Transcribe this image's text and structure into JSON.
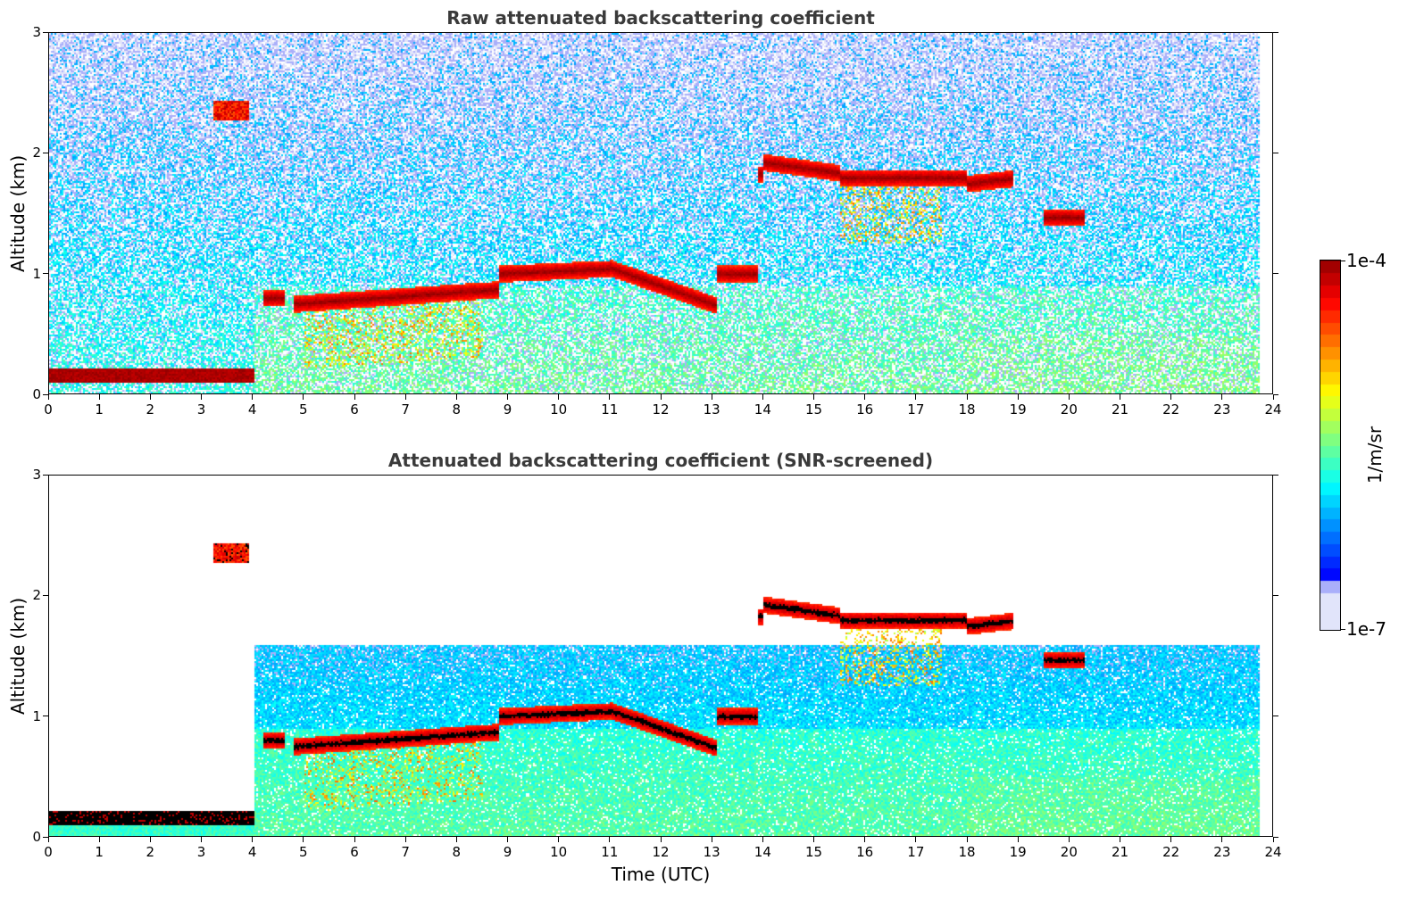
{
  "chart_data": [
    {
      "type": "heatmap",
      "title": "Raw attenuated backscattering coefficient",
      "xlabel": "",
      "ylabel": "Altitude (km)",
      "xlim": [
        0,
        24
      ],
      "ylim": [
        0,
        3
      ],
      "x_ticks": [
        "0",
        "1",
        "2",
        "3",
        "4",
        "5",
        "6",
        "7",
        "8",
        "9",
        "10",
        "11",
        "12",
        "13",
        "14",
        "15",
        "16",
        "17",
        "18",
        "19",
        "20",
        "21",
        "22",
        "23",
        "24"
      ],
      "y_ticks": [
        "0",
        "1",
        "2",
        "3"
      ],
      "data_end_time": 23.75,
      "layers": [
        {
          "name": "boundary-layer",
          "time": [
            0.0,
            4.0
          ],
          "altitude_km": [
            0.1,
            0.22
          ]
        },
        {
          "name": "elevated-layer",
          "time": [
            3.2,
            3.9
          ],
          "altitude_km": [
            2.3,
            2.45
          ]
        },
        {
          "name": "cloud-base-1",
          "time": [
            4.8,
            13.1
          ],
          "altitude_km_start": 0.7,
          "altitude_km_end": 0.7,
          "altitude_km_mid": 1.0
        },
        {
          "name": "cloud-base-2",
          "time": [
            13.1,
            18.9
          ],
          "altitude_km_start": 1.75,
          "altitude_km_end": 1.7,
          "altitude_km_mid": 1.85
        },
        {
          "name": "cloud-base-3",
          "time": [
            19.5,
            20.3
          ],
          "altitude_km": [
            1.35,
            1.5
          ]
        }
      ]
    },
    {
      "type": "heatmap",
      "title": "Attenuated backscattering coefficient (SNR-screened)",
      "xlabel": "Time (UTC)",
      "ylabel": "Altitude (km)",
      "xlim": [
        0,
        24
      ],
      "ylim": [
        0,
        3
      ],
      "x_ticks": [
        "0",
        "1",
        "2",
        "3",
        "4",
        "5",
        "6",
        "7",
        "8",
        "9",
        "10",
        "11",
        "12",
        "13",
        "14",
        "15",
        "16",
        "17",
        "18",
        "19",
        "20",
        "21",
        "22",
        "23",
        "24"
      ],
      "y_ticks": [
        "0",
        "1",
        "2",
        "3"
      ],
      "data_end_time": 23.75
    }
  ],
  "colorbar": {
    "label": "1/m/sr",
    "max_label": "1e-4",
    "min_label": "1e-7",
    "scale": "log",
    "range": [
      1e-07,
      0.0001
    ],
    "colormap": "jet"
  }
}
